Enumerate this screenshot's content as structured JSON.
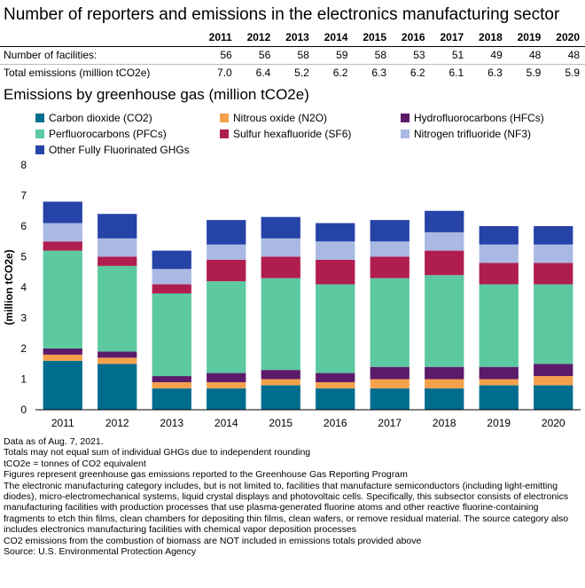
{
  "title": "Number of reporters and emissions in the electronics manufacturing sector",
  "table": {
    "years": [
      "2011",
      "2012",
      "2013",
      "2014",
      "2015",
      "2016",
      "2017",
      "2018",
      "2019",
      "2020"
    ],
    "rows": [
      {
        "label": "Number of facilities:",
        "values": [
          "56",
          "56",
          "58",
          "59",
          "58",
          "53",
          "51",
          "49",
          "48",
          "48"
        ]
      },
      {
        "label": "Total emissions (million tCO2e)",
        "values": [
          "7.0",
          "6.4",
          "5.2",
          "6.2",
          "6.3",
          "6.2",
          "6.1",
          "6.3",
          "5.9",
          "5.9"
        ]
      }
    ]
  },
  "chart_title": "Emissions by greenhouse gas (million tCO2e)",
  "chart_data": {
    "type": "bar",
    "stacked": true,
    "categories": [
      "2011",
      "2012",
      "2013",
      "2014",
      "2015",
      "2016",
      "2017",
      "2018",
      "2019",
      "2020"
    ],
    "ylabel": "(million tCO2e)",
    "ylim": [
      0,
      8
    ],
    "yticks": [
      "0",
      "1",
      "2",
      "3",
      "4",
      "5",
      "6",
      "7",
      "8"
    ],
    "grid": false,
    "legend_position": "top",
    "series": [
      {
        "name": "Carbon dioxide (CO2)",
        "color": "#006d8f",
        "values": [
          1.6,
          1.5,
          0.7,
          0.7,
          0.8,
          0.7,
          0.7,
          0.7,
          0.8,
          0.8
        ]
      },
      {
        "name": "Nitrous oxide (N2O)",
        "color": "#f5a14c",
        "values": [
          0.2,
          0.2,
          0.2,
          0.2,
          0.2,
          0.2,
          0.3,
          0.3,
          0.2,
          0.3
        ]
      },
      {
        "name": "Hydrofluorocarbons (HFCs)",
        "color": "#5c1a6b",
        "values": [
          0.2,
          0.2,
          0.2,
          0.3,
          0.3,
          0.3,
          0.4,
          0.4,
          0.4,
          0.4
        ]
      },
      {
        "name": "Perfluorocarbons (PFCs)",
        "color": "#5cc9a0",
        "values": [
          3.2,
          2.8,
          2.7,
          3.0,
          3.0,
          2.9,
          2.9,
          3.0,
          2.7,
          2.6
        ]
      },
      {
        "name": "Sulfur hexafluoride (SF6)",
        "color": "#b01e4f",
        "values": [
          0.3,
          0.3,
          0.3,
          0.7,
          0.7,
          0.8,
          0.7,
          0.8,
          0.7,
          0.7
        ]
      },
      {
        "name": "Nitrogen trifluoride (NF3)",
        "color": "#a9b9e3",
        "values": [
          0.6,
          0.6,
          0.5,
          0.5,
          0.6,
          0.6,
          0.5,
          0.6,
          0.6,
          0.6
        ]
      },
      {
        "name": "Other Fully Fluorinated GHGs",
        "color": "#2643a8",
        "values": [
          0.7,
          0.8,
          0.6,
          0.8,
          0.7,
          0.6,
          0.7,
          0.7,
          0.6,
          0.6
        ]
      }
    ]
  },
  "notes": [
    "Data as of Aug. 7, 2021.",
    "Totals may not equal sum of individual GHGs due to independent rounding",
    "tCO2e = tonnes of CO2 equivalent",
    "Figures represent greenhouse gas emissions reported to the Greenhouse Gas Reporting Program",
    "The electronic manufacturing category includes, but is not limited to, facilities that manufacture semiconductors (including light-emitting diodes), micro-electromechanical systems, liquid crystal displays and photovoltaic cells. Specifically, this subsector consists of electronics manufacturing facilities with production processes that use plasma-generated fluorine atoms and other reactive fluorine-containing fragments to etch thin films, clean chambers for depositing thin films, clean wafers, or remove residual material. The source category also includes electronics manufacturing facilities with chemical vapor deposition processes",
    "CO2 emissions from the combustion of biomass are NOT included in emissions totals provided above",
    "Source: U.S. Environmental Protection Agency"
  ]
}
